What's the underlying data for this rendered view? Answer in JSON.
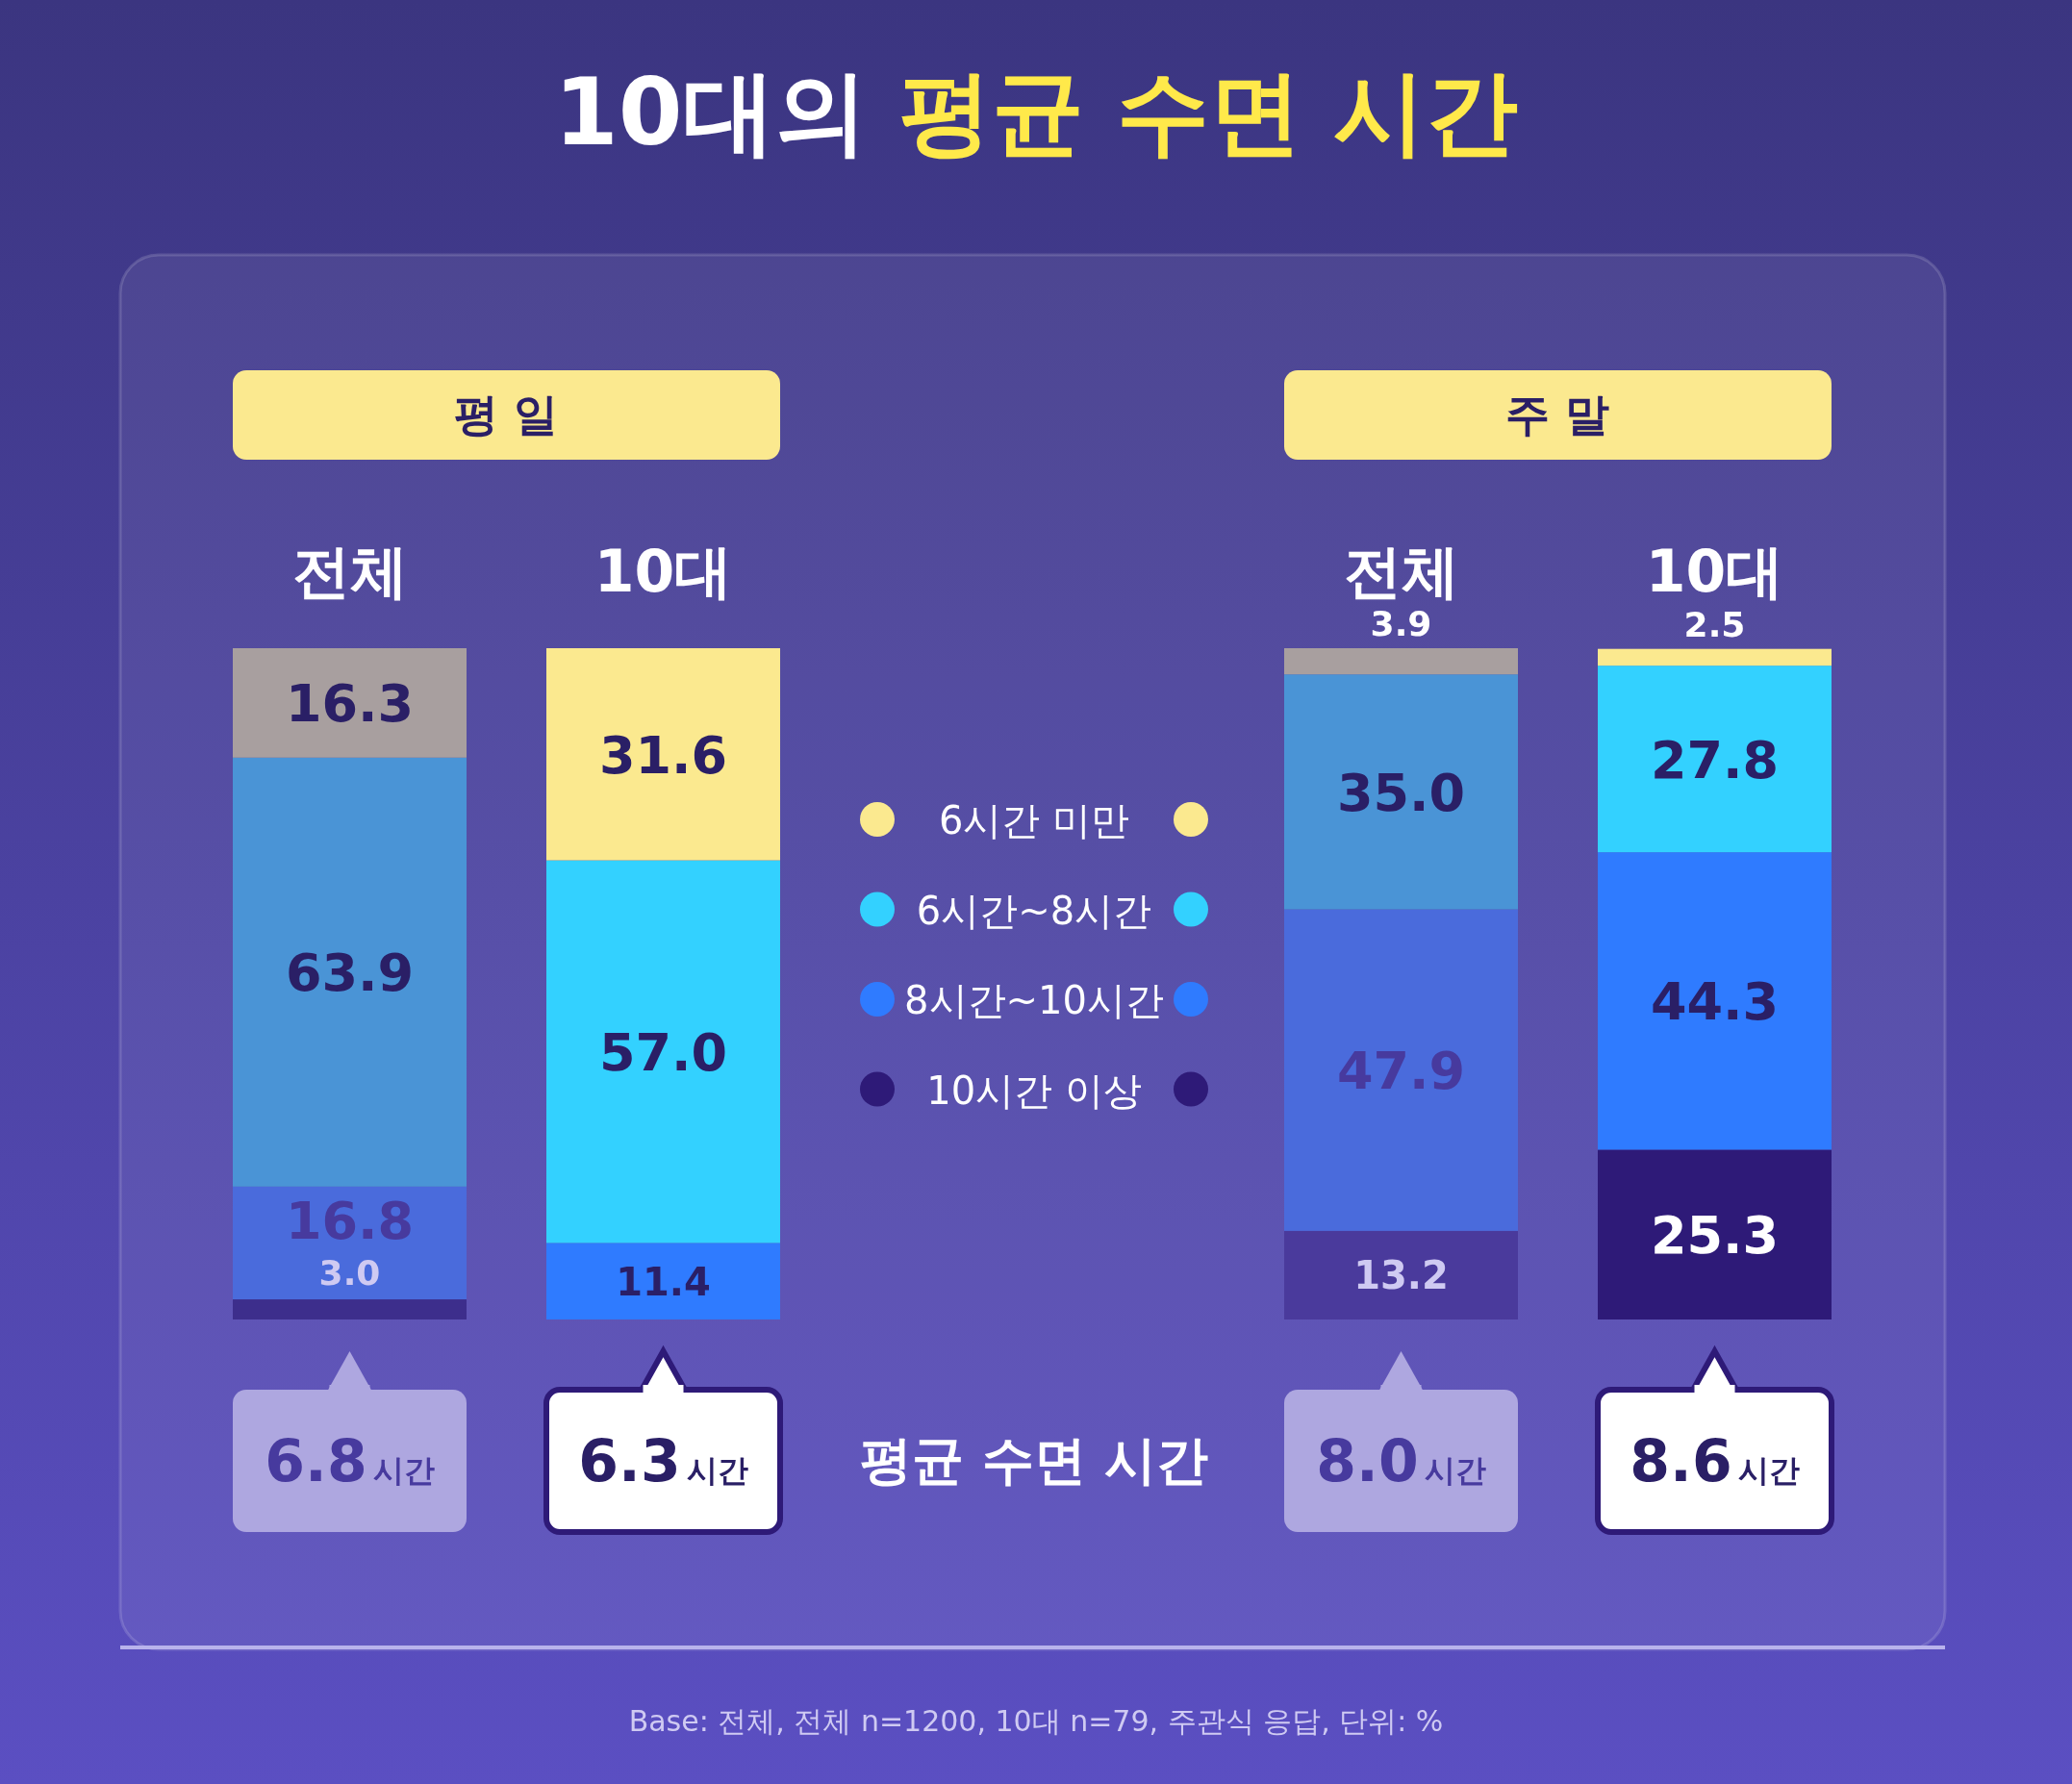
{
  "chart_data": [
    {
      "type": "bar",
      "stacked": true,
      "title": "10대의 평균 수면 시간",
      "subtitle": "평 일",
      "categories": [
        "전체",
        "10대"
      ],
      "ylim": [
        0,
        100
      ],
      "legend": "right",
      "series": [
        {
          "name": "10시간 이상",
          "color": "#2e1a78",
          "colors": [
            "#3d2e8c",
            null
          ],
          "values": [
            3.0,
            null
          ],
          "value_labels": [
            "3.0",
            null
          ]
        },
        {
          "name": "8시간~10시간",
          "color": "#2f7bff",
          "colors": [
            "#4a6bdc",
            "#2f7bff"
          ],
          "values": [
            16.8,
            11.4
          ],
          "value_labels": [
            "16.8",
            "11.4"
          ]
        },
        {
          "name": "6시간~8시간",
          "color": "#33d1ff",
          "colors": [
            "#4a94d6",
            "#33d1ff"
          ],
          "values": [
            63.9,
            57.0
          ],
          "value_labels": [
            "63.9",
            "57.0"
          ]
        },
        {
          "name": "6시간 미만",
          "color": "#fbe98f",
          "colors": [
            "#a89f9f",
            "#fbe98f"
          ],
          "values": [
            16.3,
            31.6
          ],
          "value_labels": [
            "16.3",
            "31.6"
          ]
        }
      ],
      "annotations": [
        "6.8시간",
        "6.3시간",
        "Base: 전체, 전체 n=1200, 10대 n=79, 주관식 응답, 단위: %"
      ]
    },
    {
      "type": "bar",
      "stacked": true,
      "subtitle": "주 말",
      "categories": [
        "전체",
        "10대"
      ],
      "ylim": [
        0,
        100
      ],
      "series": [
        {
          "colors": [
            "#4a3a9c",
            "#2e1a78"
          ],
          "values": [
            13.2,
            25.3
          ],
          "value_labels": [
            "13.2",
            "25.3"
          ]
        },
        {
          "colors": [
            "#4a6bdc",
            "#2f7bff"
          ],
          "values": [
            47.9,
            44.3
          ],
          "value_labels": [
            "47.9",
            "44.3"
          ]
        },
        {
          "colors": [
            "#4a94d6",
            "#33d1ff"
          ],
          "values": [
            35.0,
            27.8
          ],
          "value_labels": [
            "35.0",
            "27.8"
          ]
        },
        {
          "colors": [
            "#a89f9f",
            "#fbe98f"
          ],
          "values": [
            3.9,
            2.5
          ],
          "value_labels": [
            "3.9",
            "2.5"
          ]
        }
      ],
      "annotations": [
        "8.0시간",
        "8.6시간",
        "평균 수면 시간"
      ]
    }
  ]
}
